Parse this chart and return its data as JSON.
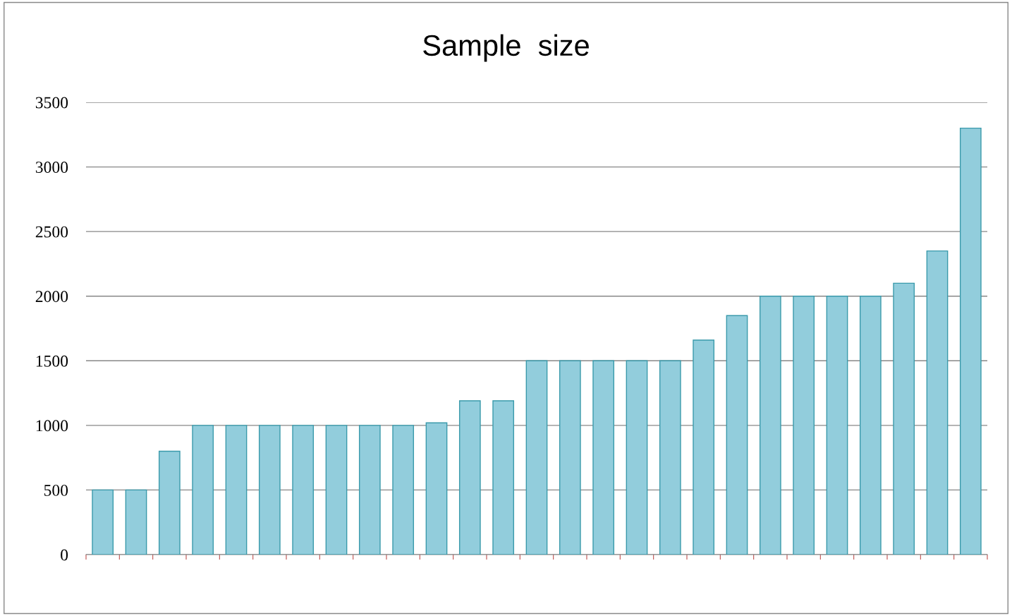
{
  "chart_data": {
    "type": "bar",
    "title": "Sample  size",
    "categories": [
      null,
      null,
      null,
      null,
      null,
      null,
      null,
      null,
      null,
      null,
      null,
      null,
      null,
      null,
      null,
      null,
      null,
      null,
      null,
      null,
      null,
      null,
      null,
      null,
      null,
      null,
      null
    ],
    "values": [
      500,
      500,
      800,
      1000,
      1000,
      1000,
      1000,
      1000,
      1000,
      1000,
      1020,
      1190,
      1190,
      1500,
      1500,
      1500,
      1500,
      1500,
      1660,
      1850,
      2000,
      2000,
      2000,
      2000,
      2100,
      2350,
      3300
    ],
    "color": "#92cddc",
    "ylim": [
      0,
      3500
    ],
    "yticks": [
      0,
      500,
      1000,
      1500,
      2000,
      2500,
      3000,
      3500
    ],
    "grid": "y",
    "legend": false
  }
}
